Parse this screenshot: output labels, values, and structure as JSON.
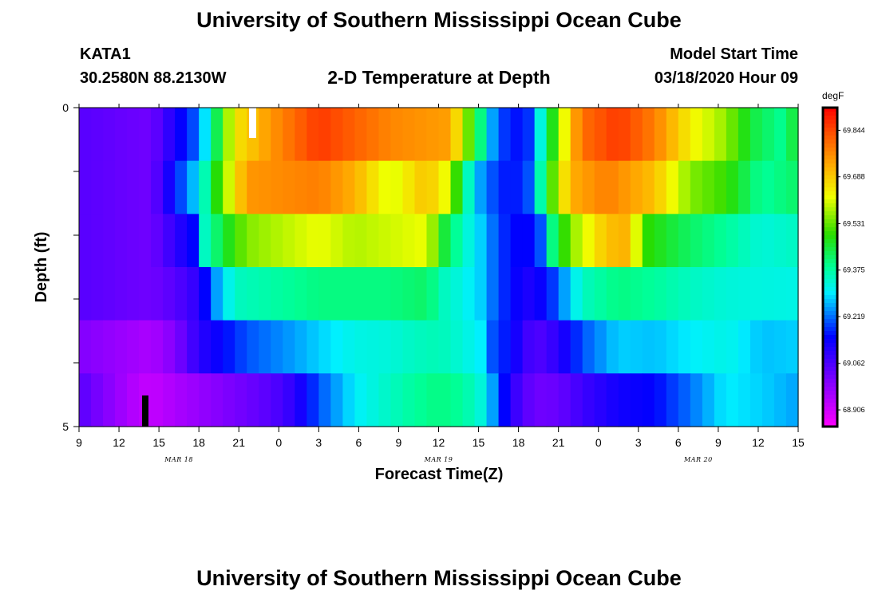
{
  "header": {
    "title_top": "University of Southern Mississippi Ocean Cube",
    "station": "KATA1",
    "coords": "30.2580N 88.2130W",
    "plot_title": "2-D Temperature at Depth",
    "model_start_label": "Model Start Time",
    "model_start_value": "03/18/2020 Hour 09",
    "title_bottom": "University of Southern Mississippi Ocean Cube"
  },
  "chart_data": {
    "type": "heatmap",
    "xlabel": "Forecast Time(Z)",
    "ylabel": "Depth (ft)",
    "x_ticks": [
      "9",
      "12",
      "15",
      "18",
      "21",
      "0",
      "3",
      "6",
      "9",
      "12",
      "15",
      "18",
      "21",
      "0",
      "3",
      "6",
      "9",
      "12",
      "15"
    ],
    "date_labels": [
      {
        "text": "MAR 18",
        "tick_index": 2.5
      },
      {
        "text": "MAR 19",
        "tick_index": 9
      },
      {
        "text": "MAR 20",
        "tick_index": 15.5
      }
    ],
    "y_ticks": [
      "0",
      "5"
    ],
    "ylim": [
      0,
      5
    ],
    "colorbar": {
      "unit": "degF",
      "ticks": [
        "69.844",
        "69.688",
        "69.531",
        "69.375",
        "69.219",
        "69.062",
        "68.906"
      ],
      "min": 68.85,
      "max": 69.92
    },
    "rows": [
      {
        "depth": "0-1",
        "profile": [
          [
            0,
            69.05
          ],
          [
            6,
            69.02
          ],
          [
            10,
            69.22
          ],
          [
            13,
            69.65
          ],
          [
            16,
            69.75
          ],
          [
            20,
            69.86
          ],
          [
            26,
            69.77
          ],
          [
            31,
            69.74
          ],
          [
            32,
            69.6
          ],
          [
            33.5,
            69.4
          ],
          [
            34.5,
            69.25
          ],
          [
            36,
            69.15
          ],
          [
            37.5,
            69.18
          ],
          [
            39,
            69.4
          ],
          [
            41,
            69.7
          ],
          [
            42,
            69.8
          ],
          [
            45,
            69.86
          ],
          [
            48,
            69.78
          ],
          [
            51,
            69.64
          ],
          [
            54,
            69.56
          ],
          [
            56,
            69.45
          ],
          [
            59,
            69.38
          ],
          [
            60,
            69.5
          ]
        ]
      },
      {
        "depth": "1-2",
        "profile": [
          [
            0,
            69.05
          ],
          [
            6,
            69.02
          ],
          [
            10,
            69.3
          ],
          [
            12,
            69.55
          ],
          [
            14,
            69.75
          ],
          [
            20,
            69.78
          ],
          [
            23,
            69.72
          ],
          [
            26,
            69.6
          ],
          [
            29,
            69.7
          ],
          [
            31,
            69.6
          ],
          [
            32,
            69.4
          ],
          [
            33.5,
            69.25
          ],
          [
            34.5,
            69.2
          ],
          [
            36,
            69.15
          ],
          [
            37.5,
            69.2
          ],
          [
            39,
            69.45
          ],
          [
            40,
            69.6
          ],
          [
            41,
            69.72
          ],
          [
            44,
            69.78
          ],
          [
            48,
            69.7
          ],
          [
            51,
            69.55
          ],
          [
            54,
            69.5
          ],
          [
            57,
            69.38
          ],
          [
            60,
            69.42
          ]
        ]
      },
      {
        "depth": "2-3",
        "profile": [
          [
            0,
            69.05
          ],
          [
            6,
            69.02
          ],
          [
            9.5,
            69.15
          ],
          [
            10.5,
            69.35
          ],
          [
            12,
            69.45
          ],
          [
            14,
            69.55
          ],
          [
            20,
            69.62
          ],
          [
            23,
            69.58
          ],
          [
            26,
            69.6
          ],
          [
            29,
            69.62
          ],
          [
            30.5,
            69.45
          ],
          [
            32,
            69.35
          ],
          [
            33.5,
            69.28
          ],
          [
            34.5,
            69.22
          ],
          [
            36,
            69.15
          ],
          [
            37.5,
            69.15
          ],
          [
            38.5,
            69.2
          ],
          [
            39.5,
            69.4
          ],
          [
            41,
            69.55
          ],
          [
            44,
            69.7
          ],
          [
            46,
            69.72
          ],
          [
            47,
            69.5
          ],
          [
            51,
            69.42
          ],
          [
            54,
            69.38
          ],
          [
            57,
            69.33
          ],
          [
            60,
            69.35
          ]
        ]
      },
      {
        "depth": "3-4",
        "profile": [
          [
            0,
            69.05
          ],
          [
            6,
            69.02
          ],
          [
            8,
            69.05
          ],
          [
            10,
            69.1
          ],
          [
            11.5,
            69.25
          ],
          [
            13,
            69.35
          ],
          [
            20,
            69.4
          ],
          [
            26,
            69.4
          ],
          [
            29,
            69.42
          ],
          [
            30.5,
            69.35
          ],
          [
            32,
            69.32
          ],
          [
            33.5,
            69.28
          ],
          [
            34.5,
            69.22
          ],
          [
            36,
            69.15
          ],
          [
            37.5,
            69.12
          ],
          [
            39,
            69.15
          ],
          [
            40.5,
            69.25
          ],
          [
            42,
            69.35
          ],
          [
            45,
            69.4
          ],
          [
            48,
            69.38
          ],
          [
            51,
            69.35
          ],
          [
            54,
            69.33
          ],
          [
            60,
            69.32
          ]
        ]
      },
      {
        "depth": "4-5",
        "profile": [
          [
            0,
            69.0
          ],
          [
            6,
            68.95
          ],
          [
            8,
            69.0
          ],
          [
            10,
            69.1
          ],
          [
            14,
            69.2
          ],
          [
            18,
            69.25
          ],
          [
            20,
            69.28
          ],
          [
            23,
            69.32
          ],
          [
            26,
            69.33
          ],
          [
            28,
            69.35
          ],
          [
            30,
            69.36
          ],
          [
            32,
            69.33
          ],
          [
            33.5,
            69.3
          ],
          [
            34.5,
            69.2
          ],
          [
            36,
            69.15
          ],
          [
            37,
            69.1
          ],
          [
            38,
            69.05
          ],
          [
            40,
            69.1
          ],
          [
            42,
            69.2
          ],
          [
            45,
            69.28
          ],
          [
            48,
            69.27
          ],
          [
            51,
            69.3
          ],
          [
            54,
            69.32
          ],
          [
            57,
            69.27
          ],
          [
            60,
            69.28
          ]
        ]
      },
      {
        "depth": "5",
        "profile": [
          [
            0,
            69.05
          ],
          [
            5,
            68.93
          ],
          [
            6,
            68.92
          ],
          [
            8,
            68.95
          ],
          [
            12,
            69.0
          ],
          [
            16,
            69.05
          ],
          [
            18,
            69.1
          ],
          [
            20,
            69.2
          ],
          [
            23,
            69.3
          ],
          [
            26,
            69.35
          ],
          [
            28,
            69.38
          ],
          [
            30,
            69.4
          ],
          [
            32,
            69.38
          ],
          [
            33.5,
            69.33
          ],
          [
            34.5,
            69.25
          ],
          [
            36,
            69.1
          ],
          [
            38,
            69.02
          ],
          [
            40,
            69.03
          ],
          [
            42,
            69.08
          ],
          [
            45,
            69.13
          ],
          [
            48,
            69.15
          ],
          [
            51,
            69.22
          ],
          [
            54,
            69.3
          ],
          [
            57,
            69.28
          ],
          [
            60,
            69.25
          ]
        ]
      }
    ]
  }
}
